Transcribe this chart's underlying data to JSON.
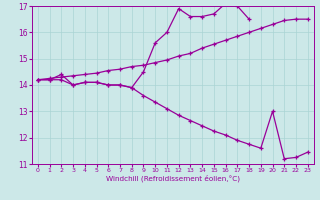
{
  "xlabel": "Windchill (Refroidissement éolien,°C)",
  "xlim": [
    -0.5,
    23.5
  ],
  "ylim": [
    11,
    17
  ],
  "yticks": [
    11,
    12,
    13,
    14,
    15,
    16,
    17
  ],
  "xticks": [
    0,
    1,
    2,
    3,
    4,
    5,
    6,
    7,
    8,
    9,
    10,
    11,
    12,
    13,
    14,
    15,
    16,
    17,
    18,
    19,
    20,
    21,
    22,
    23
  ],
  "bg_color": "#cce8e8",
  "line_color": "#990099",
  "grid_color": "#aad4d4",
  "upper_x": [
    0,
    1,
    2,
    3,
    4,
    5,
    6,
    7,
    8,
    9,
    10,
    11,
    12,
    13,
    14,
    15,
    16,
    17,
    18
  ],
  "upper_y": [
    14.2,
    14.2,
    14.4,
    14.0,
    14.1,
    14.1,
    14.0,
    14.0,
    13.9,
    14.5,
    15.6,
    16.0,
    16.9,
    16.6,
    16.6,
    16.7,
    17.1,
    17.0,
    16.5
  ],
  "mid_x": [
    0,
    1,
    2,
    3,
    4,
    5,
    6,
    7,
    8,
    9,
    10,
    11,
    12,
    13,
    14,
    15,
    16,
    17,
    18,
    19,
    20,
    21,
    22,
    23
  ],
  "mid_y": [
    14.2,
    14.25,
    14.3,
    14.35,
    14.4,
    14.45,
    14.55,
    14.6,
    14.7,
    14.75,
    14.85,
    14.95,
    15.1,
    15.2,
    15.4,
    15.55,
    15.7,
    15.85,
    16.0,
    16.15,
    16.3,
    16.45,
    16.5,
    16.5
  ],
  "low_x": [
    0,
    1,
    2,
    3,
    4,
    5,
    6,
    7,
    8,
    9,
    10,
    11,
    12,
    13,
    14,
    15,
    16,
    17,
    18,
    19,
    20,
    21,
    22,
    23
  ],
  "low_y": [
    14.2,
    14.2,
    14.2,
    14.0,
    14.1,
    14.1,
    14.0,
    14.0,
    13.9,
    13.6,
    13.35,
    13.1,
    12.85,
    12.65,
    12.45,
    12.25,
    12.1,
    11.9,
    11.75,
    11.6,
    13.0,
    11.2,
    11.25,
    11.45
  ]
}
